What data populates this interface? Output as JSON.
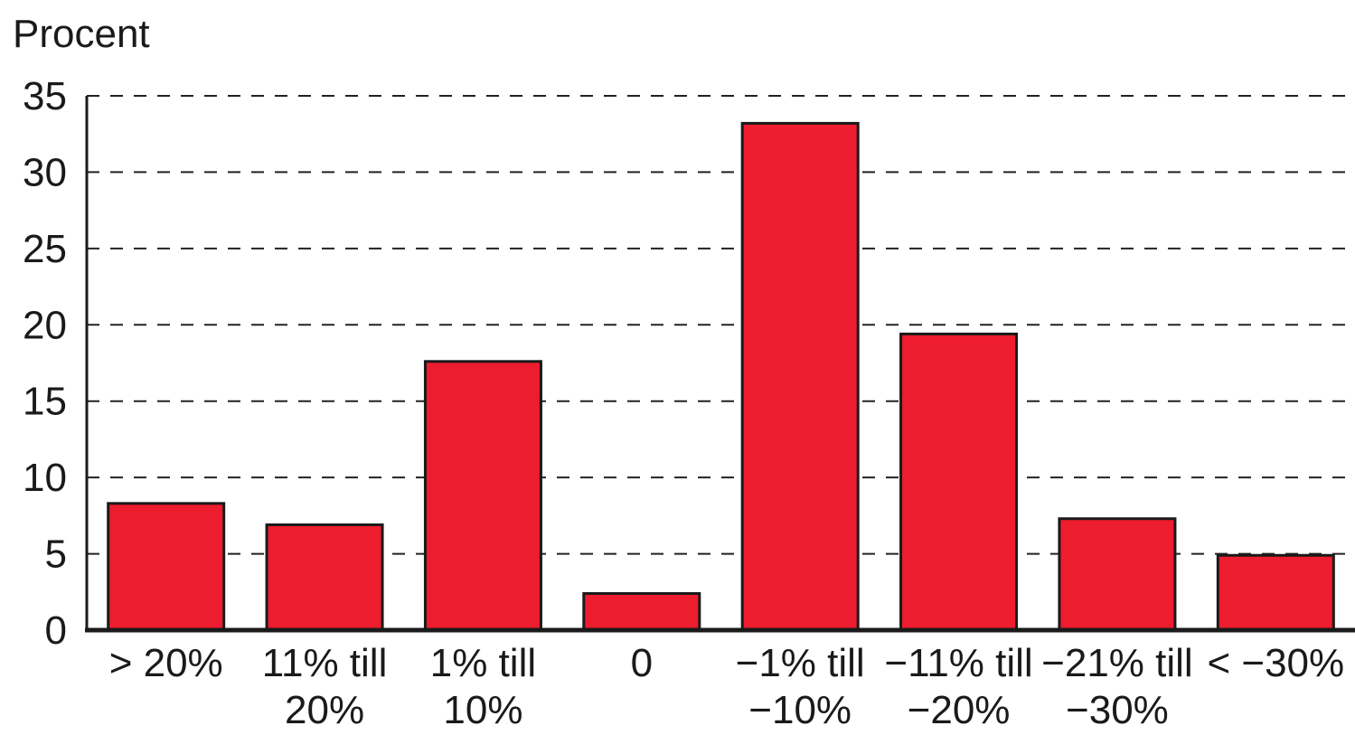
{
  "chart_data": {
    "type": "bar",
    "ylabel": "Procent",
    "ylim": [
      0,
      35
    ],
    "yticks": [
      0,
      5,
      10,
      15,
      20,
      25,
      30,
      35
    ],
    "grid": true,
    "categories": [
      [
        "> 20%"
      ],
      [
        "11% till",
        "20%"
      ],
      [
        "1% till",
        "10%"
      ],
      [
        "0"
      ],
      [
        "−1% till",
        "−10%"
      ],
      [
        "−11% till",
        "−20%"
      ],
      [
        "−21% till",
        "−30%"
      ],
      [
        "< −30%"
      ]
    ],
    "series": [
      {
        "values": [
          8.3,
          6.9,
          17.6,
          2.4,
          33.2,
          19.4,
          7.3,
          4.9
        ],
        "color": "#ed1c2e"
      }
    ]
  }
}
